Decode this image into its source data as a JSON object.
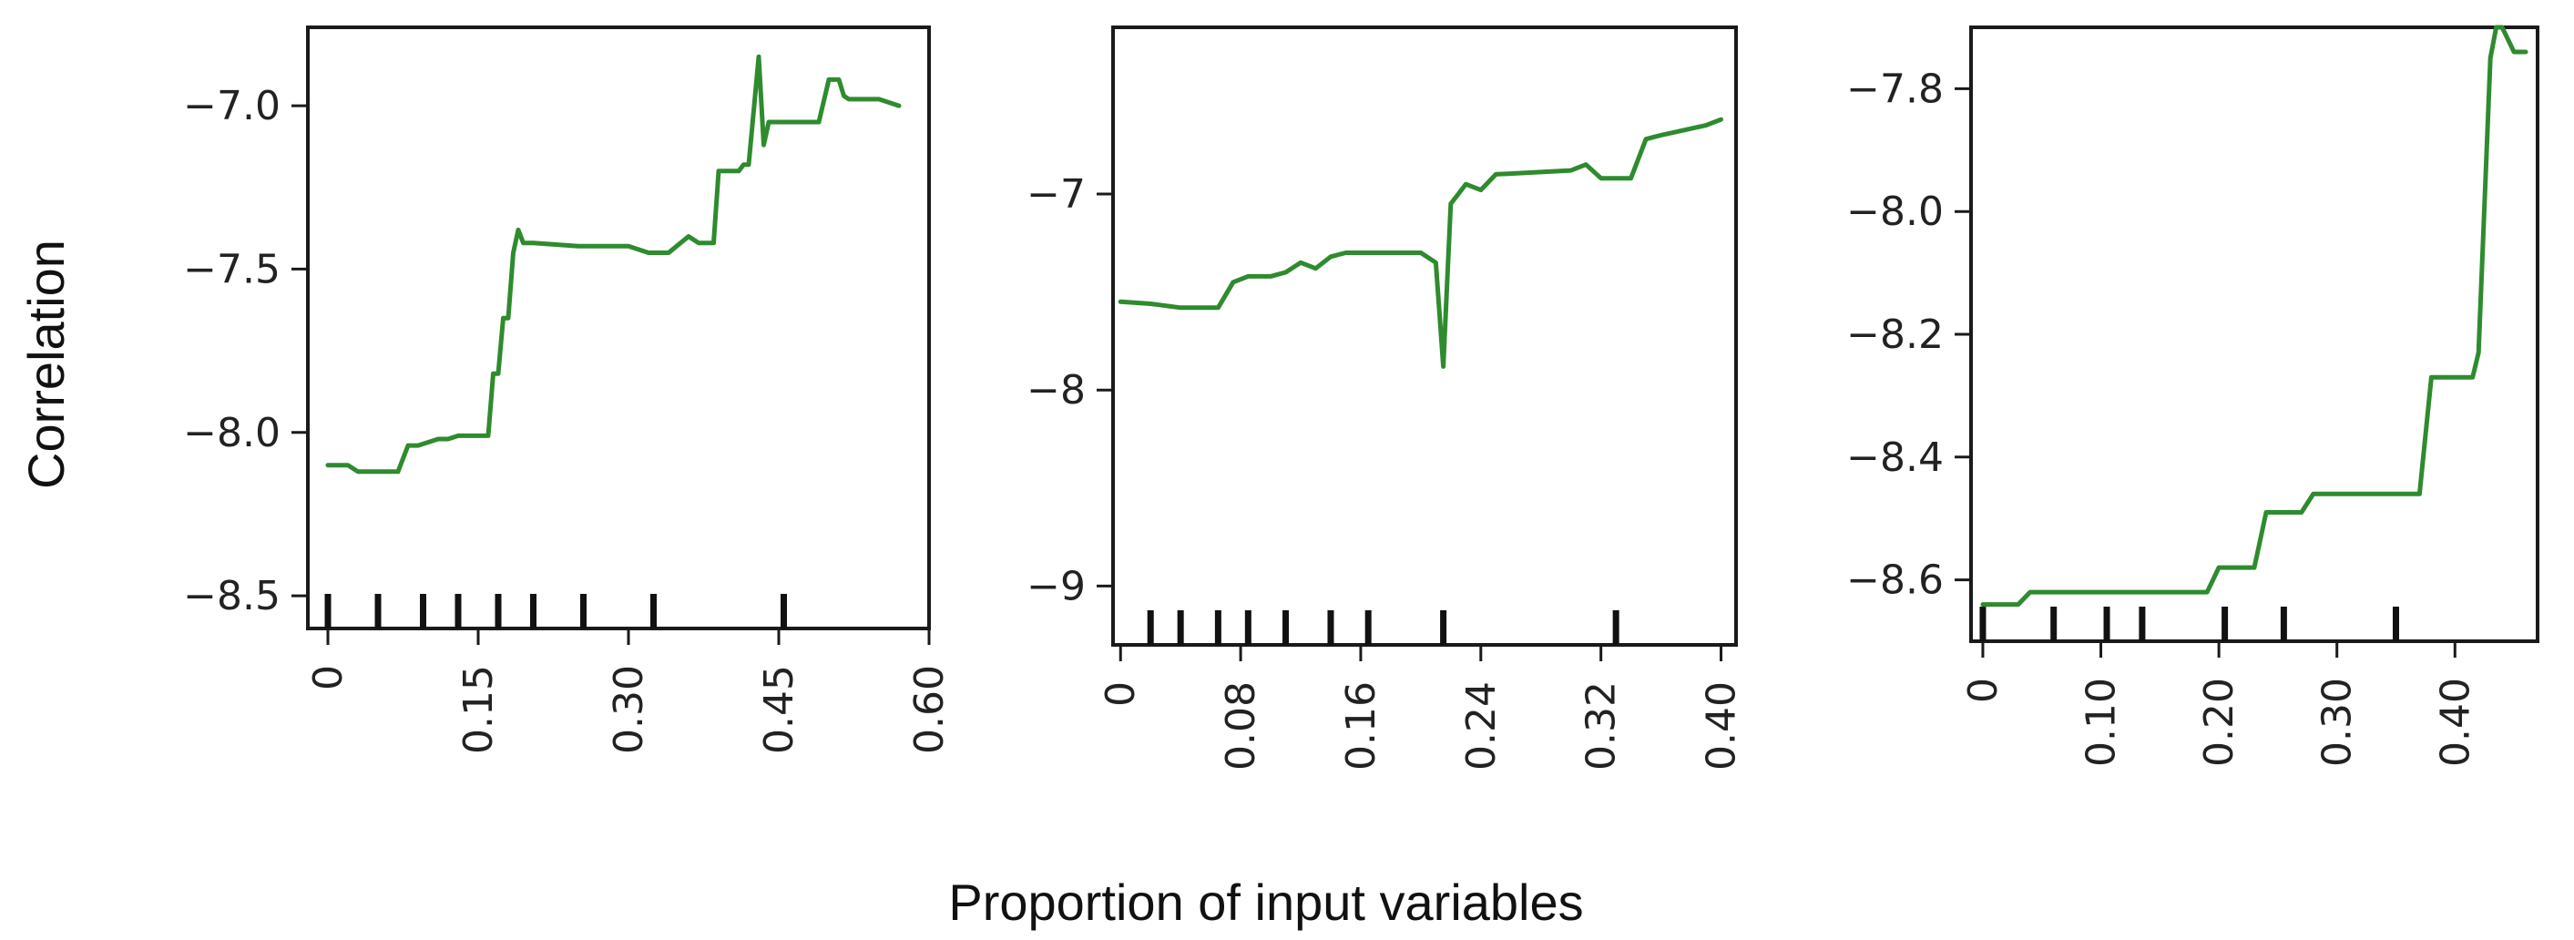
{
  "figure": {
    "ylabel": "Correlation",
    "xlabel": "Proportion of input variables"
  },
  "colors": {
    "line": "#2e8b2e",
    "frame": "#1a1a1a",
    "rug": "#111111"
  },
  "chart_data": [
    {
      "type": "line",
      "title": "",
      "xlabel": "",
      "ylabel": "Correlation",
      "xlim": [
        -0.02,
        0.6
      ],
      "ylim": [
        -8.6,
        -6.76
      ],
      "x_ticks": [
        0,
        0.15,
        0.3,
        0.45,
        0.6
      ],
      "x_tick_labels": [
        "0",
        "0.15",
        "0.30",
        "0.45",
        "0.60"
      ],
      "y_ticks": [
        -7.0,
        -7.5,
        -8.0,
        -8.5
      ],
      "y_tick_labels": [
        "-7.0",
        "-7.5",
        "-8.0",
        "-8.5"
      ],
      "rug": [
        0.0,
        0.05,
        0.095,
        0.13,
        0.17,
        0.205,
        0.255,
        0.325,
        0.455
      ],
      "series": [
        {
          "x": [
            0.0,
            0.02,
            0.03,
            0.07,
            0.08,
            0.09,
            0.11,
            0.12,
            0.13,
            0.16,
            0.165,
            0.17,
            0.175,
            0.18,
            0.185,
            0.19,
            0.195,
            0.2,
            0.205,
            0.25,
            0.3,
            0.32,
            0.34,
            0.36,
            0.37,
            0.385,
            0.39,
            0.4,
            0.41,
            0.415,
            0.42,
            0.43,
            0.435,
            0.44,
            0.45,
            0.48,
            0.49,
            0.5,
            0.51,
            0.515,
            0.52,
            0.55,
            0.57
          ],
          "y": [
            -8.1,
            -8.1,
            -8.12,
            -8.12,
            -8.04,
            -8.04,
            -8.02,
            -8.02,
            -8.01,
            -8.01,
            -7.82,
            -7.82,
            -7.65,
            -7.65,
            -7.45,
            -7.38,
            -7.42,
            -7.42,
            -7.42,
            -7.43,
            -7.43,
            -7.45,
            -7.45,
            -7.4,
            -7.42,
            -7.42,
            -7.2,
            -7.2,
            -7.2,
            -7.18,
            -7.18,
            -6.85,
            -7.12,
            -7.05,
            -7.05,
            -7.05,
            -7.05,
            -6.92,
            -6.92,
            -6.97,
            -6.98,
            -6.98,
            -7.0
          ]
        }
      ]
    },
    {
      "type": "line",
      "title": "",
      "xlabel": "",
      "ylabel": "",
      "xlim": [
        -0.005,
        0.41
      ],
      "ylim": [
        -9.3,
        -6.15
      ],
      "x_ticks": [
        0,
        0.08,
        0.16,
        0.24,
        0.32,
        0.4
      ],
      "x_tick_labels": [
        "0",
        "0.08",
        "0.16",
        "0.24",
        "0.32",
        "0.40"
      ],
      "y_ticks": [
        -7,
        -8,
        -9
      ],
      "y_tick_labels": [
        "-7",
        "-8",
        "-9"
      ],
      "rug": [
        0.02,
        0.04,
        0.065,
        0.085,
        0.11,
        0.14,
        0.165,
        0.215,
        0.33
      ],
      "series": [
        {
          "x": [
            0.0,
            0.02,
            0.04,
            0.065,
            0.075,
            0.085,
            0.09,
            0.1,
            0.11,
            0.12,
            0.13,
            0.14,
            0.15,
            0.2,
            0.21,
            0.215,
            0.22,
            0.225,
            0.23,
            0.24,
            0.25,
            0.3,
            0.31,
            0.32,
            0.34,
            0.35,
            0.36,
            0.39,
            0.4
          ],
          "y": [
            -7.55,
            -7.56,
            -7.58,
            -7.58,
            -7.45,
            -7.42,
            -7.42,
            -7.42,
            -7.4,
            -7.35,
            -7.38,
            -7.32,
            -7.3,
            -7.3,
            -7.35,
            -7.88,
            -7.05,
            -7.0,
            -6.95,
            -6.98,
            -6.9,
            -6.88,
            -6.85,
            -6.92,
            -6.92,
            -6.72,
            -6.7,
            -6.65,
            -6.62
          ]
        }
      ]
    },
    {
      "type": "line",
      "title": "",
      "xlabel": "",
      "ylabel": "",
      "xlim": [
        -0.01,
        0.47
      ],
      "ylim": [
        -8.7,
        -7.7
      ],
      "x_ticks": [
        0,
        0.1,
        0.2,
        0.3,
        0.4
      ],
      "x_tick_labels": [
        "0",
        "0.10",
        "0.20",
        "0.30",
        "0.40"
      ],
      "y_ticks": [
        -7.8,
        -8.0,
        -8.2,
        -8.4,
        -8.6
      ],
      "y_tick_labels": [
        "-7.8",
        "-8.0",
        "-8.2",
        "-8.4",
        "-8.6"
      ],
      "rug": [
        0.0,
        0.06,
        0.105,
        0.135,
        0.205,
        0.255,
        0.35
      ],
      "series": [
        {
          "x": [
            0.0,
            0.03,
            0.04,
            0.1,
            0.15,
            0.19,
            0.2,
            0.21,
            0.23,
            0.24,
            0.27,
            0.28,
            0.32,
            0.37,
            0.38,
            0.41,
            0.415,
            0.42,
            0.43,
            0.435,
            0.44,
            0.445,
            0.45,
            0.46
          ],
          "y": [
            -8.64,
            -8.64,
            -8.62,
            -8.62,
            -8.62,
            -8.62,
            -8.58,
            -8.58,
            -8.58,
            -8.49,
            -8.49,
            -8.46,
            -8.46,
            -8.46,
            -8.27,
            -8.27,
            -8.27,
            -8.23,
            -7.75,
            -7.7,
            -7.7,
            -7.72,
            -7.74,
            -7.74
          ]
        }
      ]
    }
  ]
}
